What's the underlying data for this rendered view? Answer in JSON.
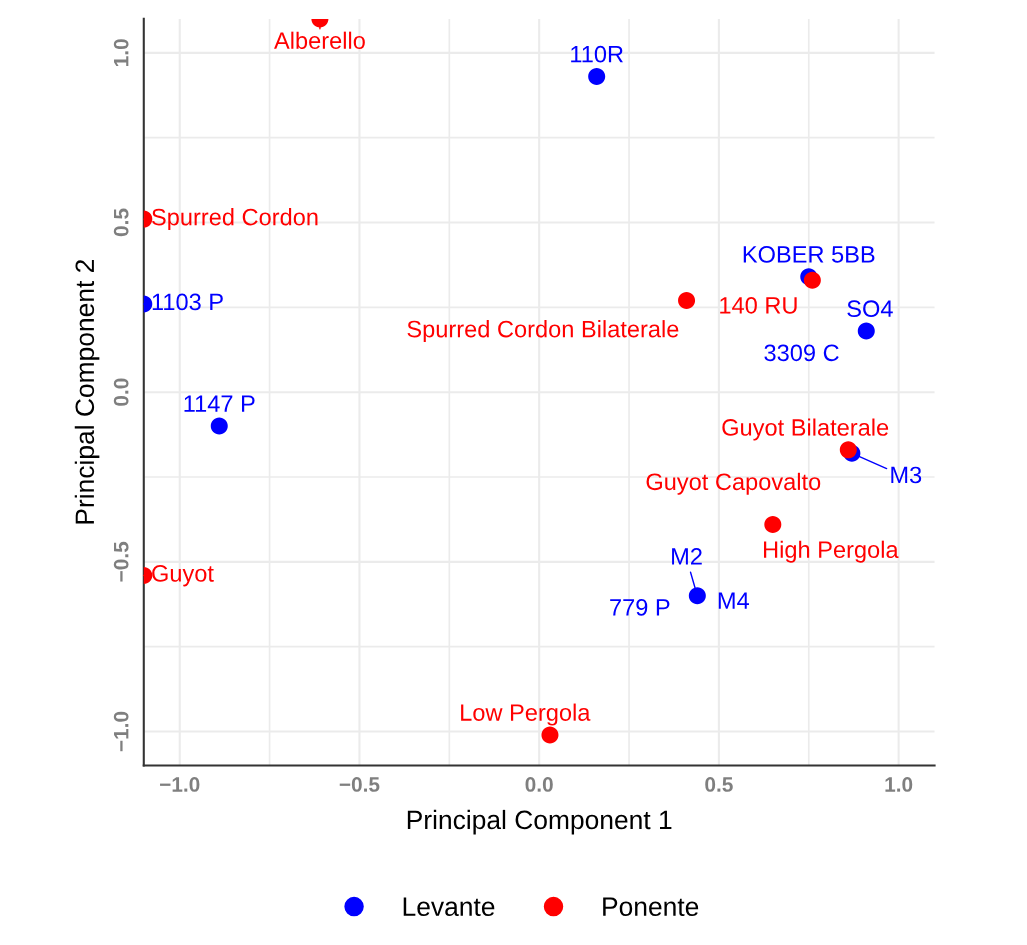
{
  "chart_data": {
    "type": "scatter",
    "xlabel": "Principal Component 1",
    "ylabel": "Principal Component 2",
    "xlim": [
      -1.1,
      1.1
    ],
    "ylim": [
      -1.1,
      1.1
    ],
    "xticks": [
      {
        "value": -1.0,
        "label": "−1.0"
      },
      {
        "value": -0.5,
        "label": "−0.5"
      },
      {
        "value": 0,
        "label": "0.0"
      },
      {
        "value": 0.5,
        "label": "0.5"
      },
      {
        "value": 1.0,
        "label": "1.0"
      }
    ],
    "yticks": [
      {
        "value": -1.0,
        "label": "−1.0"
      },
      {
        "value": -0.5,
        "label": "−0.5"
      },
      {
        "value": 0,
        "label": "0.0"
      },
      {
        "value": 0.5,
        "label": "0.5"
      },
      {
        "value": 1.0,
        "label": "1.0"
      }
    ],
    "grid": true,
    "legend": "bottom",
    "marker": "circle",
    "series": [
      {
        "name": "Levante",
        "color": "#0000ff",
        "x": [
          0.16,
          -0.89,
          0.91,
          0.75,
          0.87,
          0.44,
          -1.1
        ],
        "values": [
          0.93,
          -0.1,
          0.18,
          0.34,
          -0.18,
          -0.6,
          0.26
        ]
      },
      {
        "name": "Ponente",
        "color": "#ff0000",
        "x": [
          0.41,
          0.76,
          0.86,
          0.65,
          0.03,
          -0.61,
          -1.1,
          -1.1
        ],
        "values": [
          0.27,
          0.33,
          -0.17,
          -0.39,
          -1.01,
          1.1,
          0.51,
          -0.54
        ]
      }
    ],
    "annotations": [
      {
        "text": "Alberello",
        "x": -0.61,
        "y": 1.1
      },
      {
        "text": "Spurred Cordon",
        "x": -1.1,
        "y": 0.51
      },
      {
        "text": "1103 P",
        "x": -1.1,
        "y": 0.26
      },
      {
        "text": "Spurred Cordon Bilaterale",
        "x": 0.41,
        "y": 0.27
      },
      {
        "text": "140 RU",
        "x": 0.76,
        "y": 0.33
      },
      {
        "text": "KOBER 5BB",
        "x": 0.75,
        "y": 0.34
      },
      {
        "text": "SO4",
        "x": 0.91,
        "y": 0.18
      },
      {
        "text": "3309 C",
        "x": 0.91,
        "y": 0.18
      },
      {
        "text": "110R",
        "x": 0.16,
        "y": 0.93
      },
      {
        "text": "1147 P",
        "x": -0.89,
        "y": -0.1
      },
      {
        "text": "Guyot Bilaterale",
        "x": 0.86,
        "y": -0.17
      },
      {
        "text": "M3",
        "x": 0.87,
        "y": -0.18
      },
      {
        "text": "Guyot Capovalto",
        "x": 0.65,
        "y": -0.39
      },
      {
        "text": "High Pergola",
        "x": 0.65,
        "y": -0.39
      },
      {
        "text": "M2",
        "x": 0.44,
        "y": -0.6
      },
      {
        "text": "M4",
        "x": 0.44,
        "y": -0.6
      },
      {
        "text": "779 P",
        "x": 0.44,
        "y": -0.6
      },
      {
        "text": "Guyot",
        "x": -1.1,
        "y": -0.54
      },
      {
        "text": "Low Pergola",
        "x": 0.03,
        "y": -1.01
      }
    ]
  }
}
